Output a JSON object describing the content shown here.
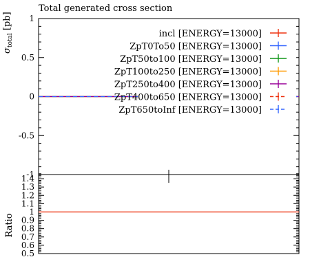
{
  "chart_data": {
    "type": "line",
    "title": "Total generated cross section",
    "ylabel_main": "σ",
    "ylabel_sub": "total",
    "ylabel_unit": " [pb]",
    "ylabel_ratio": "Ratio",
    "main": {
      "ylim": [
        -1,
        1
      ],
      "yticks": [
        {
          "v": 1,
          "label": "1"
        },
        {
          "v": 0.5,
          "label": "0.5"
        },
        {
          "v": 0,
          "label": "0"
        },
        {
          "v": -0.5,
          "label": "-0.5"
        },
        {
          "v": -1,
          "label": "-1"
        }
      ]
    },
    "ratio": {
      "ylim": [
        0.5,
        1.45
      ],
      "yticks": [
        {
          "v": 1.4,
          "label": "1.4"
        },
        {
          "v": 1.3,
          "label": "1.3"
        },
        {
          "v": 1.2,
          "label": "1.2"
        },
        {
          "v": 1.1,
          "label": "1.1"
        },
        {
          "v": 1.0,
          "label": "1"
        },
        {
          "v": 0.9,
          "label": "0.9"
        },
        {
          "v": 0.8,
          "label": "0.8"
        },
        {
          "v": 0.7,
          "label": "0.7"
        },
        {
          "v": 0.6,
          "label": "0.6"
        },
        {
          "v": 0.5,
          "label": "0.5"
        }
      ],
      "ref_line": 1.0,
      "ref_color": "#ee3311"
    },
    "legend_position": "top-right",
    "series": [
      {
        "name": "incl [ENERGY=13000]",
        "color": "#ee3311",
        "dash": false,
        "value": 0
      },
      {
        "name": "ZpT0To50 [ENERGY=13000]",
        "color": "#3366ff",
        "dash": false,
        "value": 0
      },
      {
        "name": "ZpT50to100 [ENERGY=13000]",
        "color": "#109618",
        "dash": false,
        "value": 0
      },
      {
        "name": "ZpT100to250 [ENERGY=13000]",
        "color": "#ff9900",
        "dash": false,
        "value": 0
      },
      {
        "name": "ZpT250to400 [ENERGY=13000]",
        "color": "#990099",
        "dash": false,
        "value": 0
      },
      {
        "name": "ZpT400to650 [ENERGY=13000]",
        "color": "#ee3311",
        "dash": true,
        "value": 0
      },
      {
        "name": "ZpT650toInf [ENERGY=13000]",
        "color": "#3366ff",
        "dash": true,
        "value": 0
      }
    ]
  }
}
